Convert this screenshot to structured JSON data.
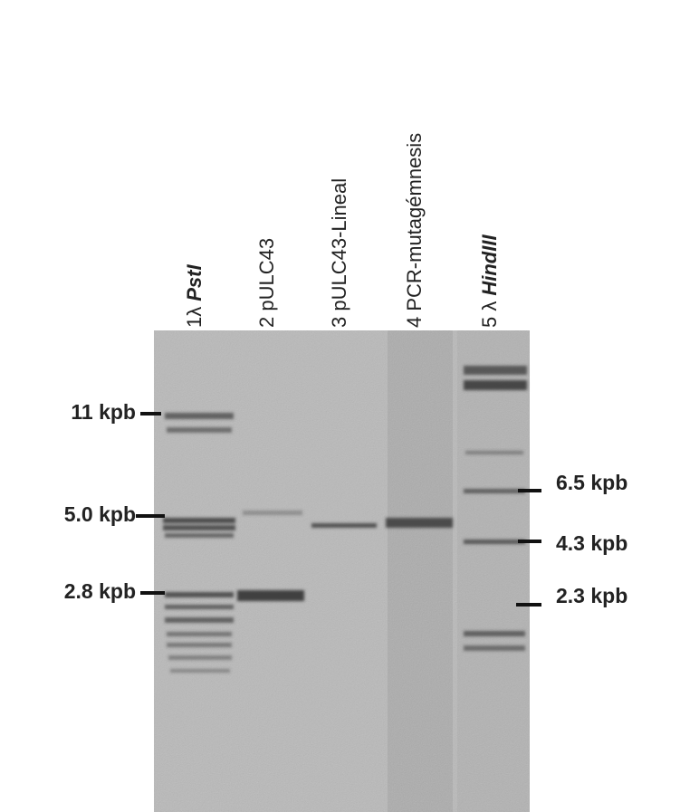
{
  "figure": {
    "lanes": [
      {
        "label": "1λ",
        "italic": "PstI"
      },
      {
        "label": "2 pULC43"
      },
      {
        "label": "3 pULC43-Lineal"
      },
      {
        "label": "4 PCR-mutagémnesis"
      },
      {
        "label": "5 λ",
        "italic": "HindIII"
      }
    ],
    "left_markers": [
      "11 kpb",
      "5.0 kpb",
      "2.8 kpb"
    ],
    "right_markers": [
      "6.5 kpb",
      "4.3 kpb",
      "2.3 kpb"
    ]
  }
}
